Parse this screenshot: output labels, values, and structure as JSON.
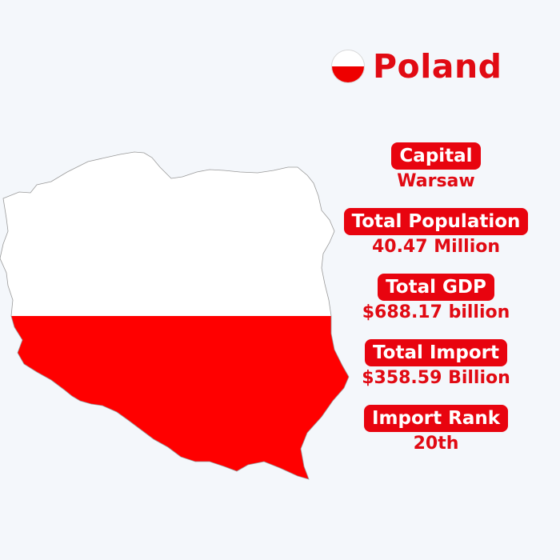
{
  "header": {
    "title": "Poland"
  },
  "colors": {
    "accent": "#e8040f",
    "flag_white": "#ffffff",
    "flag_red": "#ff0000",
    "background": "#f4f7fb"
  },
  "icons": {
    "flag": "poland-flag-icon",
    "map": "poland-map-flag"
  },
  "facts": [
    {
      "label": "Capital",
      "value": "Warsaw"
    },
    {
      "label": "Total Population",
      "value": "40.47 Million"
    },
    {
      "label": "Total GDP",
      "value": "$688.17 billion"
    },
    {
      "label": "Total Import",
      "value": "$358.59 Billion"
    },
    {
      "label": "Import Rank",
      "value": "20th"
    }
  ]
}
